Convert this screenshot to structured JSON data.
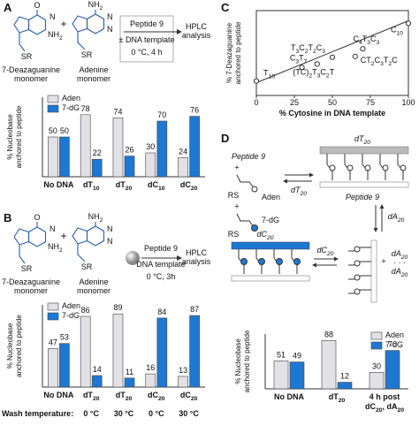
{
  "chart_data": [
    {
      "type": "bar",
      "panel": "A",
      "y_label": [
        "% Nucleobase",
        "anchored to peptide"
      ],
      "categories": [
        "No DNA",
        "dT10",
        "dT20",
        "dC10",
        "dC20"
      ],
      "series": [
        {
          "name": "Aden",
          "color": "#e2e2e6",
          "values": [
            50,
            78,
            74,
            30,
            24
          ]
        },
        {
          "name": "7-dG",
          "color": "#1e78d2",
          "values": [
            50,
            22,
            26,
            70,
            76
          ]
        }
      ],
      "ylim": [
        0,
        100
      ],
      "legend": "top-left"
    },
    {
      "type": "bar",
      "panel": "B",
      "y_label": [
        "% Nucleobase",
        "anchored to peptide"
      ],
      "categories": [
        "No DNA",
        "dT20",
        "dT20",
        "dC20",
        "dC20"
      ],
      "row_label": "Wash temperature:",
      "row": [
        null,
        "0 °C",
        "30 °C",
        "0 °C",
        "30 °C"
      ],
      "series": [
        {
          "name": "Aden",
          "color": "#e2e2e6",
          "values": [
            47,
            86,
            89,
            16,
            13
          ]
        },
        {
          "name": "7-dG",
          "color": "#1e78d2",
          "values": [
            53,
            14,
            11,
            84,
            87
          ]
        }
      ],
      "ylim": [
        0,
        100
      ],
      "legend": "top-left"
    },
    {
      "type": "scatter",
      "panel": "C",
      "x_label": "% Cytosine in DNA template",
      "y_label": [
        "% 7-Deazaguanine",
        "anchored to peptide"
      ],
      "x": [
        0,
        30,
        40,
        50,
        65,
        70,
        100
      ],
      "values": [
        17,
        33,
        37,
        45,
        46,
        55,
        85
      ],
      "point_labels": [
        "T10",
        "C3T7",
        "(TC)2T3C2T",
        "T3C2T2C3",
        "CT2C3T2C",
        "C4T3C3",
        "C10"
      ],
      "trendline": {
        "x": [
          0,
          100
        ],
        "y": [
          15,
          88
        ]
      },
      "xlim": [
        0,
        100
      ],
      "ylim": [
        0,
        100
      ],
      "xticks": [
        0,
        25,
        50,
        75,
        100
      ],
      "color": "#333333"
    },
    {
      "type": "bar",
      "panel": "D",
      "y_label": [
        "% Nucleobase",
        "anchored to peptide"
      ],
      "categories": [
        "No DNA",
        "dT20",
        "4 h post dC20, dA20"
      ],
      "series": [
        {
          "name": "Aden",
          "color": "#e2e2e6",
          "values": [
            51,
            88,
            30
          ]
        },
        {
          "name": "7-dG",
          "color": "#1e78d2",
          "values": [
            49,
            12,
            70
          ]
        }
      ],
      "ylim": [
        0,
        100
      ],
      "legend": "top-right"
    }
  ],
  "schemes": {
    "A": {
      "deaza_atoms": [
        "O",
        "N",
        "NH2",
        "SR"
      ],
      "adenine_atoms": [
        "NH2",
        "N",
        "N",
        "SR"
      ],
      "deaza_name": [
        "7-Deazaguanine",
        "monomer"
      ],
      "adenine_name": [
        "Adenine",
        "monomer"
      ],
      "conditions": [
        "Peptide 9",
        "± DNA template",
        "0 °C, 4 h"
      ],
      "product": [
        "HPLC",
        "analysis"
      ]
    },
    "B": {
      "deaza_atoms": [
        "O",
        "N",
        "NH2",
        "SR"
      ],
      "adenine_atoms": [
        "NH2",
        "N",
        "N",
        "SR"
      ],
      "deaza_name": [
        "7-Deazaguanine",
        "monomer"
      ],
      "adenine_name": [
        "Adenine",
        "monomer"
      ],
      "conditions": [
        "Peptide 9",
        "DNA template",
        "0 °C, 3h"
      ],
      "product": [
        "HPLC",
        "analysis"
      ]
    },
    "D": {
      "peptide": "Peptide 9",
      "aden": "Aden",
      "dg": "7-dG",
      "rs": "RS",
      "dt": "dT20",
      "dc": "dC20",
      "da": "dA20",
      "dots": "· · ·"
    }
  }
}
